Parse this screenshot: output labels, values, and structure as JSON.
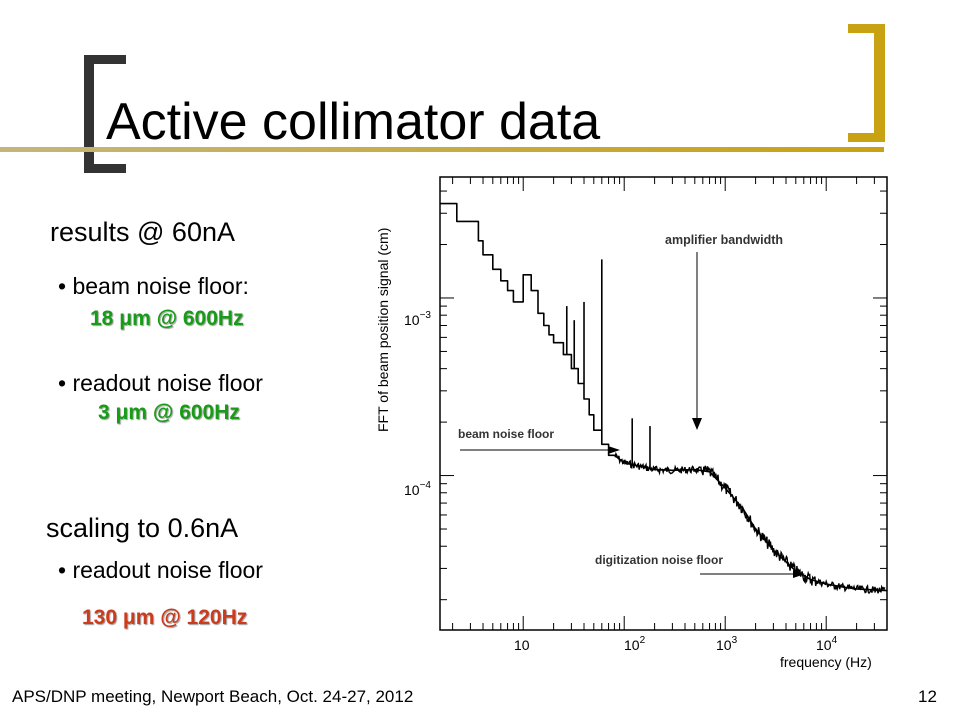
{
  "slide": {
    "title": "Active collimator data",
    "footer": "APS/DNP meeting, Newport Beach, Oct. 24-27, 2012",
    "page_number": "12",
    "accent_color": "#c9a213",
    "left": {
      "results_heading": "results @ 60nA",
      "bullet1": "• beam noise floor:",
      "bullet1_value_pre": "18 ",
      "bullet1_value_mu": "μ",
      "bullet1_value_post": "m @ 600Hz",
      "bullet2": "• readout noise floor",
      "bullet2_value_pre": "3 ",
      "bullet2_value_mu": "μ",
      "bullet2_value_post": "m @ 600Hz",
      "scaling_heading": "scaling to 0.6nA",
      "bullet3": "• readout noise floor",
      "bullet3_value_pre": "130 ",
      "bullet3_value_mu": "μ",
      "bullet3_value_post": "m @ 120Hz",
      "value_color_green": "#169c16",
      "value_color_orange": "#cc3b1b"
    }
  },
  "chart_data": {
    "type": "line",
    "x_scale": "log",
    "y_scale": "log",
    "ylabel": "FFT of beam position signal (cm)",
    "xlabel": "frequency (Hz)",
    "x_tick_labels": [
      "10",
      "10^2",
      "10^3",
      "10^4"
    ],
    "y_tick_labels": [
      "10^-3",
      "10^-4"
    ],
    "annotations": [
      "amplifier bandwidth",
      "beam noise floor",
      "digitization noise floor"
    ],
    "series": [
      {
        "x": [
          1.5,
          2.2,
          2.2,
          3.6,
          3.6,
          4.0,
          4.0,
          5.0,
          5.0,
          6.0,
          6.0,
          7.0,
          7.0,
          8.0,
          8.0,
          10.0,
          10.0,
          12.0,
          12.0,
          14.0,
          14.0,
          16.0,
          16.0,
          18.0,
          18.0,
          20.0,
          20.0,
          25.0,
          25.0,
          30.0,
          30.0,
          35.0,
          35.0,
          40.0,
          40.0,
          45.0,
          45.0,
          50.0,
          50.0,
          60.0,
          60.0,
          70.0,
          70.0,
          80.0,
          100.0,
          150.0,
          200.0,
          300.0,
          500.0,
          700.0,
          1000.0,
          1500.0,
          2000.0,
          3000.0,
          5000.0,
          7000.0,
          10000.0,
          15000.0,
          20000.0,
          30000.0,
          40000.0
        ],
        "y": [
          0.0034,
          0.0034,
          0.0027,
          0.0027,
          0.0021,
          0.0021,
          0.00175,
          0.00175,
          0.00145,
          0.00145,
          0.00125,
          0.00125,
          0.0011,
          0.0011,
          0.00095,
          0.00095,
          0.00135,
          0.00135,
          0.0011,
          0.0011,
          0.00082,
          0.00082,
          0.0007,
          0.0007,
          0.00062,
          0.00062,
          0.00056,
          0.00056,
          0.00048,
          0.00048,
          0.0004,
          0.0004,
          0.00033,
          0.00033,
          0.00027,
          0.00027,
          0.00022,
          0.00022,
          0.00018,
          0.00018,
          0.00015,
          0.00015,
          0.00013,
          0.00013,
          0.000118,
          0.000112,
          0.000108,
          0.000107,
          0.000108,
          0.000105,
          8.5e-05,
          6.5e-05,
          5e-05,
          3.8e-05,
          2.9e-05,
          2.6e-05,
          2.45e-05,
          2.35e-05,
          2.3e-05,
          2.27e-05,
          2.25e-05
        ]
      }
    ],
    "peaks": [
      {
        "x": 27,
        "y": 0.0009
      },
      {
        "x": 32,
        "y": 0.00075
      },
      {
        "x": 40,
        "y": 0.00095
      },
      {
        "x": 60,
        "y": 0.00165
      },
      {
        "x": 120,
        "y": 0.00021
      },
      {
        "x": 180,
        "y": 0.00019
      }
    ]
  }
}
